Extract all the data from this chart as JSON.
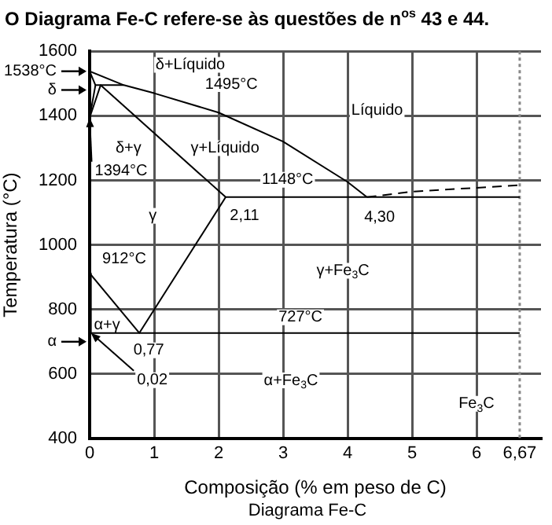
{
  "chart_data": {
    "type": "line",
    "title": "O Diagrama Fe-C refere-se às questões de n$^{os}$ 43 e 44.",
    "xlabel": "Composição (% em peso de C)",
    "ylabel": "Temperatura (°C)",
    "xlim": [
      0,
      7
    ],
    "ylim": [
      400,
      1600
    ],
    "xticks": [
      0,
      1,
      2,
      3,
      4,
      5,
      6,
      {
        "value": 6.67,
        "label": "6,67"
      }
    ],
    "yticks": [
      400,
      600,
      800,
      1000,
      1200,
      1400,
      1600
    ],
    "grid": true,
    "legend": false,
    "marker": "none",
    "line_style": "solid",
    "series": [
      {
        "color": "#000000",
        "x": [
          0,
          0.53,
          1,
          2,
          3,
          4,
          4.3
        ],
        "values": [
          1538,
          1495,
          1470,
          1410,
          1320,
          1195,
          1148
        ]
      },
      {
        "color": "#000000",
        "x": [
          0,
          0.09,
          0.53
        ],
        "values": [
          1538,
          1495,
          1495
        ]
      },
      {
        "color": "#000000",
        "x": [
          0,
          0.09
        ],
        "values": [
          1394,
          1495
        ]
      },
      {
        "color": "#000000",
        "x": [
          0,
          0.17,
          2.11,
          6.67
        ],
        "values": [
          1394,
          1495,
          1148,
          1148
        ]
      },
      {
        "color": "#000000",
        "line_style": "dashed",
        "x": [
          4.3,
          5,
          6.67
        ],
        "values": [
          1148,
          1165,
          1185
        ]
      },
      {
        "color": "#000000",
        "x": [
          0,
          0.77,
          2.11
        ],
        "values": [
          912,
          727,
          1148
        ]
      },
      {
        "color": "#000000",
        "x": [
          0.02,
          6.67
        ],
        "values": [
          727,
          727
        ]
      },
      {
        "color": "#000000",
        "x": [
          0,
          0.02
        ],
        "values": [
          912,
          727
        ]
      }
    ],
    "ref_lines": [
      {
        "axis": "x",
        "value": 6.67,
        "color": "#888888",
        "line_style": "dotted"
      }
    ],
    "annotations": [
      {
        "text": "1538°C",
        "x": 0,
        "y": 1538
      },
      "δ",
      "α",
      "δ+Líquido",
      "1495°C",
      "Líquido",
      "δ+γ",
      "γ+Líquido",
      {
        "text": "1394°C",
        "x": 0,
        "y": 1394
      },
      {
        "text": "1148°C",
        "x": 3.07,
        "y": 1148
      },
      {
        "text": "2,11",
        "x": 2.11,
        "y": 1148
      },
      {
        "text": "4,30",
        "x": 4.3,
        "y": 1148
      },
      "γ",
      "γ+Fe$_{3}$C",
      {
        "text": "912°C",
        "x": 0,
        "y": 912
      },
      {
        "text": "727°C",
        "x": 3.27,
        "y": 727
      },
      "α+γ",
      {
        "text": "0,77",
        "x": 0.77,
        "y": 727
      },
      {
        "text": "0,02",
        "x": 0.02,
        "y": 727
      },
      "α+Fe$_{3}$C",
      "Fe$_{3}$C",
      "Diagrama Fe-C"
    ]
  }
}
